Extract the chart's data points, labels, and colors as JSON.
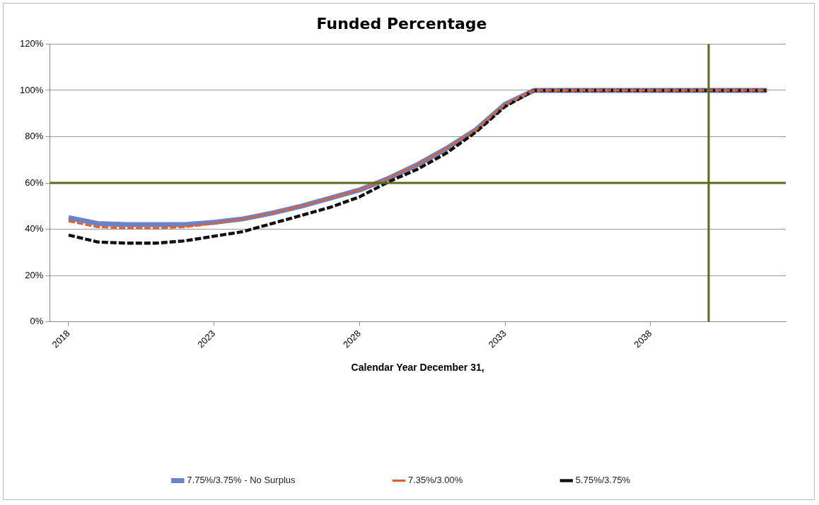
{
  "chart_data": {
    "type": "line",
    "title": "Funded Percentage",
    "xlabel": "Calendar Year December 31,",
    "x": [
      2018,
      2019,
      2020,
      2021,
      2022,
      2023,
      2024,
      2025,
      2026,
      2027,
      2028,
      2029,
      2030,
      2031,
      2032,
      2033,
      2034,
      2035,
      2036,
      2037,
      2038,
      2039,
      2040,
      2041,
      2042
    ],
    "xlim": [
      2017.35,
      2042.65
    ],
    "xticks": [
      2018,
      2023,
      2028,
      2033,
      2038
    ],
    "ylim": [
      0,
      120
    ],
    "yticks": [
      {
        "value": 0,
        "label": "0%"
      },
      {
        "value": 20,
        "label": "20%"
      },
      {
        "value": 40,
        "label": "40%"
      },
      {
        "value": 60,
        "label": "60%"
      },
      {
        "value": 80,
        "label": "80%"
      },
      {
        "value": 100,
        "label": "100%"
      },
      {
        "value": 120,
        "label": "120%"
      }
    ],
    "grid": "y",
    "legend": "bottom",
    "marker": "none",
    "series": [
      {
        "name": "7.75%/3.75% - No Surplus",
        "color": "#6b82c8",
        "line_style": "solid",
        "values": [
          45,
          42.5,
          42,
          42,
          42,
          43,
          44.5,
          47,
          50,
          53.5,
          57,
          62,
          68,
          75,
          83,
          94,
          100,
          100,
          100,
          100,
          100,
          100,
          100,
          100,
          100
        ]
      },
      {
        "name": "7.35%/3.00%",
        "color": "#e0622a",
        "line_style": "dashed",
        "values": [
          43.5,
          41,
          40.5,
          40.5,
          41,
          42.5,
          44.5,
          47,
          50,
          53.5,
          57,
          62,
          68,
          75,
          83,
          94,
          100,
          100,
          100,
          100,
          100,
          100,
          100,
          100,
          100
        ]
      },
      {
        "name": "5.75%/3.75%",
        "color": "#111111",
        "line_style": "dashed",
        "values": [
          37.5,
          34.5,
          34,
          34,
          35,
          37,
          39,
          42.5,
          46,
          49.5,
          54,
          60.5,
          66,
          73,
          82,
          93,
          100,
          100,
          100,
          100,
          100,
          100,
          100,
          100,
          100
        ]
      }
    ],
    "ref_lines": [
      {
        "axis": "y",
        "value": 60,
        "color": "#5b6b1a"
      },
      {
        "axis": "x",
        "value": 2040,
        "color": "#5b6b1a"
      }
    ]
  }
}
